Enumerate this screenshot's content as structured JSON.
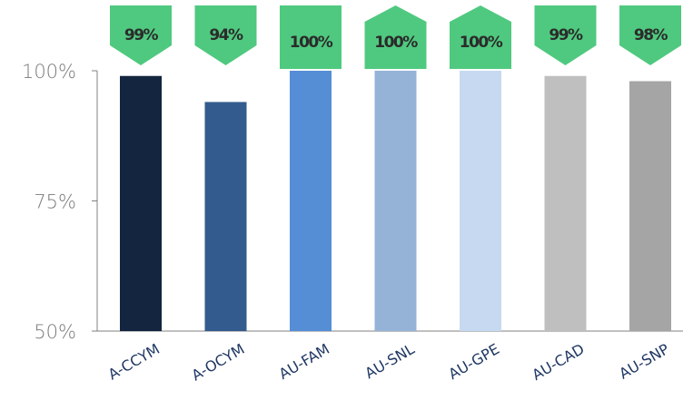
{
  "chart_data": {
    "type": "bar",
    "categories": [
      "A-CCYM",
      "A-OCYM",
      "AU-FAM",
      "AU-SNL",
      "AU-GPE",
      "AU-CAD",
      "AU-SNP"
    ],
    "values": [
      99,
      94,
      100,
      100,
      100,
      99,
      98
    ],
    "data_labels": [
      "99%",
      "94%",
      "100%",
      "100%",
      "100%",
      "99%",
      "98%"
    ],
    "bar_colors": [
      "#13253f",
      "#335b8d",
      "#558ed5",
      "#95b3d7",
      "#c6d9f1",
      "#bfbfbf",
      "#a5a5a5"
    ],
    "label_badge_color": "#4fc97f",
    "yticks": [
      50,
      75,
      100
    ],
    "ytick_labels": [
      "50%",
      "75%",
      "100%"
    ],
    "ylim": [
      50,
      100
    ],
    "title": "",
    "xlabel": "",
    "ylabel": "",
    "grid": false,
    "legend": "none"
  }
}
